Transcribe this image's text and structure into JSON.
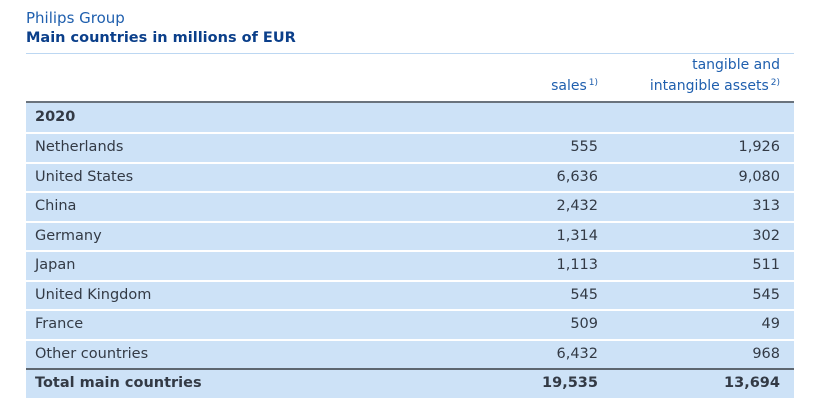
{
  "header": {
    "company": "Philips Group",
    "subtitle": "Main countries  in millions of EUR"
  },
  "columns": {
    "sales": "sales",
    "sales_note": "1)",
    "assets_line1": "tangible and",
    "assets_line2": "intangible assets",
    "assets_note": "2)"
  },
  "year": "2020",
  "rows": [
    {
      "country": "Netherlands",
      "sales": "555",
      "assets": "1,926"
    },
    {
      "country": "United States",
      "sales": "6,636",
      "assets": "9,080"
    },
    {
      "country": "China",
      "sales": "2,432",
      "assets": "313"
    },
    {
      "country": "Germany",
      "sales": "1,314",
      "assets": "302"
    },
    {
      "country": "Japan",
      "sales": "1,113",
      "assets": "511"
    },
    {
      "country": "United Kingdom",
      "sales": "545",
      "assets": "545"
    },
    {
      "country": "France",
      "sales": "509",
      "assets": "49"
    },
    {
      "country": "Other countries",
      "sales": "6,432",
      "assets": "968"
    }
  ],
  "total": {
    "label": "Total main countries",
    "sales": "19,535",
    "assets": "13,694"
  }
}
